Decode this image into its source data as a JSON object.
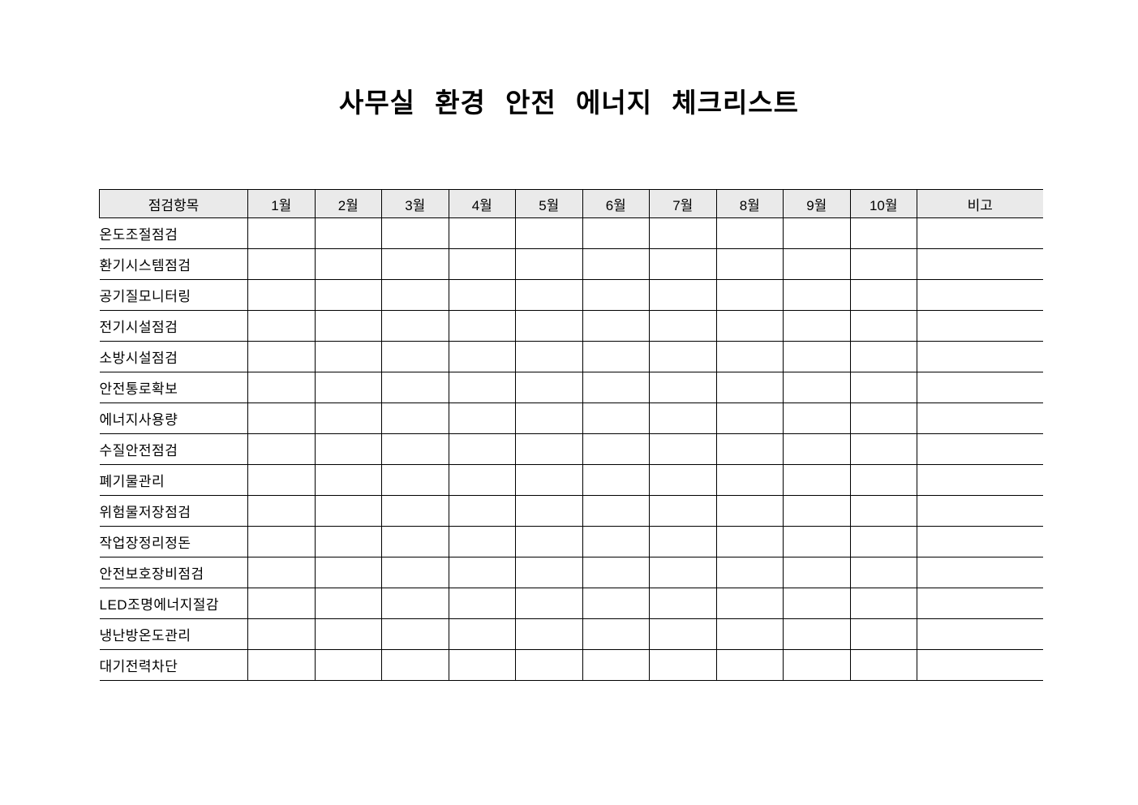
{
  "document": {
    "title": "사무실 환경 안전 에너지 체크리스트"
  },
  "colors": {
    "header_bg": "#eaeaea",
    "border": "#000000"
  },
  "table": {
    "columns": [
      "점검항목",
      "1월",
      "2월",
      "3월",
      "4월",
      "5월",
      "6월",
      "7월",
      "8월",
      "9월",
      "10월",
      "비고"
    ],
    "rows": [
      {
        "label": "온도조절점검",
        "cells": [
          "",
          "",
          "",
          "",
          "",
          "",
          "",
          "",
          "",
          "",
          ""
        ]
      },
      {
        "label": "환기시스템점검",
        "cells": [
          "",
          "",
          "",
          "",
          "",
          "",
          "",
          "",
          "",
          "",
          ""
        ]
      },
      {
        "label": "공기질모니터링",
        "cells": [
          "",
          "",
          "",
          "",
          "",
          "",
          "",
          "",
          "",
          "",
          ""
        ]
      },
      {
        "label": "전기시설점검",
        "cells": [
          "",
          "",
          "",
          "",
          "",
          "",
          "",
          "",
          "",
          "",
          ""
        ]
      },
      {
        "label": "소방시설점검",
        "cells": [
          "",
          "",
          "",
          "",
          "",
          "",
          "",
          "",
          "",
          "",
          ""
        ]
      },
      {
        "label": "안전통로확보",
        "cells": [
          "",
          "",
          "",
          "",
          "",
          "",
          "",
          "",
          "",
          "",
          ""
        ]
      },
      {
        "label": "에너지사용량",
        "cells": [
          "",
          "",
          "",
          "",
          "",
          "",
          "",
          "",
          "",
          "",
          ""
        ]
      },
      {
        "label": "수질안전점검",
        "cells": [
          "",
          "",
          "",
          "",
          "",
          "",
          "",
          "",
          "",
          "",
          ""
        ]
      },
      {
        "label": "폐기물관리",
        "cells": [
          "",
          "",
          "",
          "",
          "",
          "",
          "",
          "",
          "",
          "",
          ""
        ]
      },
      {
        "label": "위험물저장점검",
        "cells": [
          "",
          "",
          "",
          "",
          "",
          "",
          "",
          "",
          "",
          "",
          ""
        ]
      },
      {
        "label": "작업장정리정돈",
        "cells": [
          "",
          "",
          "",
          "",
          "",
          "",
          "",
          "",
          "",
          "",
          ""
        ]
      },
      {
        "label": "안전보호장비점검",
        "cells": [
          "",
          "",
          "",
          "",
          "",
          "",
          "",
          "",
          "",
          "",
          ""
        ]
      },
      {
        "label": "LED조명에너지절감",
        "cells": [
          "",
          "",
          "",
          "",
          "",
          "",
          "",
          "",
          "",
          "",
          ""
        ]
      },
      {
        "label": "냉난방온도관리",
        "cells": [
          "",
          "",
          "",
          "",
          "",
          "",
          "",
          "",
          "",
          "",
          ""
        ]
      },
      {
        "label": "대기전력차단",
        "cells": [
          "",
          "",
          "",
          "",
          "",
          "",
          "",
          "",
          "",
          "",
          ""
        ]
      }
    ]
  }
}
